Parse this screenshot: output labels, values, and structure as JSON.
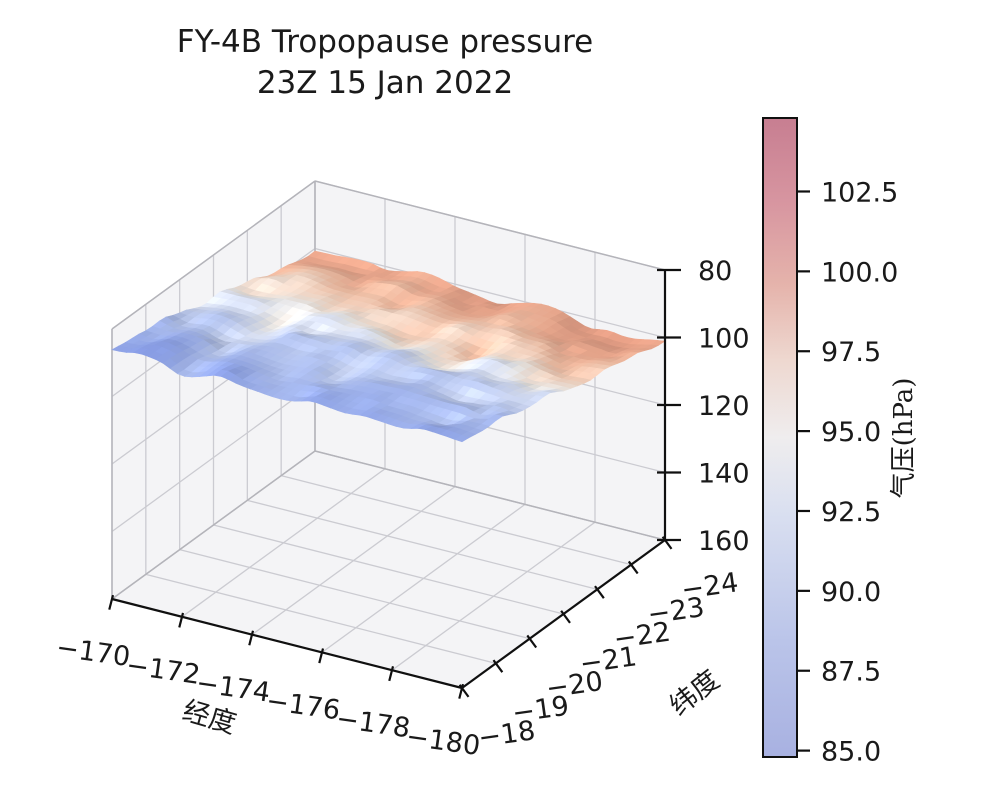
{
  "title": {
    "line1": "FY-4B Tropopause pressure",
    "line2": "23Z 15 Jan 2022"
  },
  "colors": {
    "background": "#ffffff",
    "pane_fill": "#f4f4f6",
    "grid_line": "#cbcbd1",
    "box_edge": "#b4b4ba",
    "axis_spine": "#101010",
    "text": "#1a1a1a"
  },
  "chart_data": {
    "type": "surface3d",
    "title": "FY-4B Tropopause pressure 23Z 15 Jan 2022",
    "xlabel": "经度",
    "ylabel": "纬度",
    "zlabel": "气压(hPa)",
    "x_axis": {
      "label": "经度",
      "ticks": [
        "−170",
        "−172",
        "−174",
        "−176",
        "−178",
        "−180"
      ],
      "values": [
        -170,
        -172,
        -174,
        -176,
        -178,
        -180
      ]
    },
    "y_axis": {
      "label": "纬度",
      "ticks": [
        "−18",
        "−19",
        "−20",
        "−21",
        "−22",
        "−23",
        "−24"
      ],
      "values": [
        -18,
        -19,
        -20,
        -21,
        -22,
        -23,
        -24
      ]
    },
    "z_axis": {
      "label": "气压(hPa)",
      "ticks": [
        "80",
        "100",
        "120",
        "140",
        "160"
      ],
      "values": [
        80,
        100,
        120,
        140,
        160
      ],
      "range": [
        80,
        160
      ],
      "inverted": true
    },
    "grid": true,
    "colorbar": {
      "label": "气压(hPa)",
      "tick_labels": [
        "102.5",
        "100.0",
        "97.5",
        "95.0",
        "92.5",
        "90.0",
        "87.5",
        "85.0"
      ],
      "tick_values": [
        102.5,
        100.0,
        97.5,
        95.0,
        92.5,
        90.0,
        87.5,
        85.0
      ],
      "range": [
        84.8,
        104.8
      ],
      "stops": [
        [
          0,
          "#a8b1e1"
        ],
        [
          0.18,
          "#bac4e9"
        ],
        [
          0.38,
          "#d9dff0"
        ],
        [
          0.5,
          "#efedee"
        ],
        [
          0.62,
          "#eed8d0"
        ],
        [
          0.74,
          "#e5b3ab"
        ],
        [
          0.87,
          "#d795a0"
        ],
        [
          1,
          "#c77e91"
        ]
      ]
    },
    "surface": {
      "description": "Tropopause pressure surface (hPa); low pressure (blue ~85-90) at front (lat -18), high pressure (pink ~98-102) at back (lat -24)",
      "color_range": [
        84,
        103
      ],
      "surface_stops": [
        [
          0,
          "#7a8eda"
        ],
        [
          0.15,
          "#91a5e4"
        ],
        [
          0.3,
          "#b3c2ea"
        ],
        [
          0.45,
          "#dde3f2"
        ],
        [
          0.52,
          "#edeae7"
        ],
        [
          0.6,
          "#f0d9ca"
        ],
        [
          0.7,
          "#edbda4"
        ],
        [
          0.82,
          "#e6a68c"
        ],
        [
          1,
          "#dc9880"
        ]
      ],
      "lons": [
        -170,
        -171,
        -172,
        -173,
        -174,
        -175,
        -176,
        -177,
        -178,
        -179,
        -180
      ],
      "lats": [
        -18,
        -19,
        -20,
        -21,
        -22,
        -23,
        -24
      ],
      "pressure_grid": [
        [
          86.5,
          86.0,
          87.0,
          85.5,
          86.0,
          87.0,
          86.0,
          85.5,
          86.5,
          86.0,
          86.0
        ],
        [
          88.0,
          87.5,
          88.5,
          87.0,
          88.0,
          88.5,
          87.5,
          87.0,
          88.0,
          88.5,
          87.5
        ],
        [
          90.5,
          90.0,
          91.0,
          89.5,
          90.5,
          91.0,
          90.0,
          89.5,
          90.5,
          91.0,
          90.0
        ],
        [
          93.5,
          93.0,
          94.0,
          92.5,
          93.5,
          94.0,
          93.0,
          93.5,
          94.0,
          93.5,
          93.0
        ],
        [
          96.0,
          95.5,
          96.5,
          95.5,
          96.5,
          97.0,
          96.0,
          96.5,
          97.0,
          96.5,
          96.0
        ],
        [
          98.0,
          97.5,
          98.5,
          98.0,
          99.0,
          99.5,
          98.5,
          99.0,
          99.5,
          99.0,
          98.5
        ],
        [
          99.5,
          99.5,
          100.5,
          100.0,
          100.5,
          101.0,
          100.0,
          100.5,
          101.5,
          101.0,
          100.5
        ]
      ]
    }
  }
}
